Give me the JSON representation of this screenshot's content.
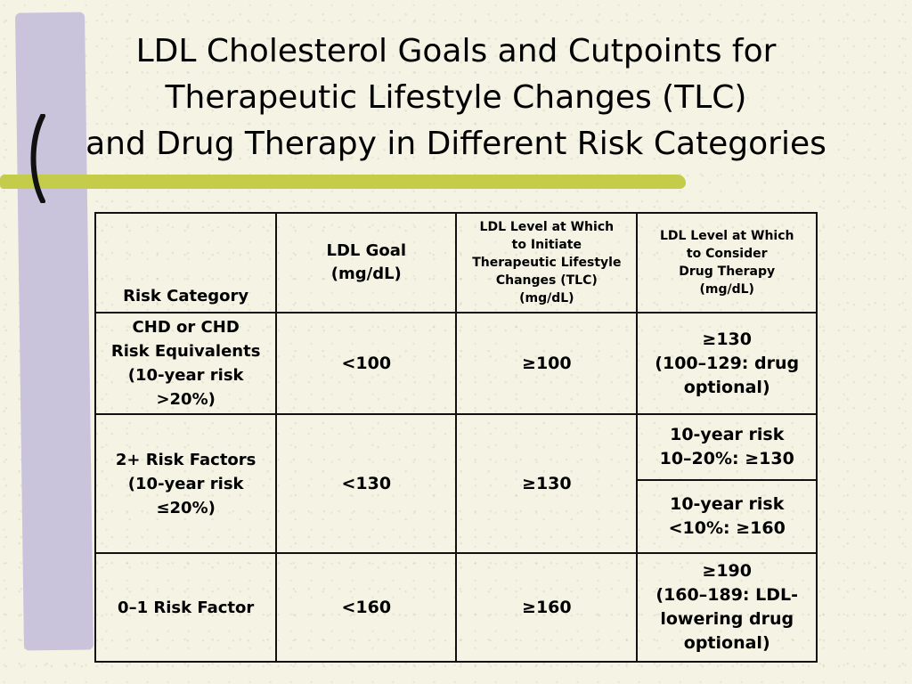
{
  "title": {
    "line1": "LDL Cholesterol Goals and Cutpoints for",
    "line2": "Therapeutic Lifestyle Changes (TLC)",
    "line3": "and Drug Therapy in Different Risk Categories"
  },
  "table": {
    "headers": {
      "risk_category": "Risk Category",
      "ldl_goal_line1": "LDL Goal",
      "ldl_goal_line2": "(mg/dL)",
      "tlc_line1": "LDL Level at Which",
      "tlc_line2": "to Initiate",
      "tlc_line3": "Therapeutic Lifestyle",
      "tlc_line4": "Changes (TLC)",
      "tlc_line5": "(mg/dL)",
      "drug_line1": "LDL Level at Which",
      "drug_line2": "to Consider",
      "drug_line3": "Drug Therapy",
      "drug_line4": "(mg/dL)"
    },
    "rows": [
      {
        "category_lines": [
          "CHD or CHD",
          "Risk Equivalents",
          "(10-year risk",
          ">20%)"
        ],
        "goal": "<100",
        "tlc": "≥100",
        "drug_lines": [
          "≥130",
          "(100–129: drug",
          "optional)"
        ]
      },
      {
        "category_lines": [
          "2+ Risk Factors",
          "(10-year risk",
          "≤20%)"
        ],
        "goal": "<130",
        "tlc": "≥130",
        "drug_a_lines": [
          "10-year risk",
          "10–20%: ≥130"
        ],
        "drug_b_lines": [
          "10-year risk",
          "<10%: ≥160"
        ]
      },
      {
        "category_lines": [
          "0–1 Risk Factor"
        ],
        "goal": "<160",
        "tlc": "≥160",
        "drug_lines": [
          "≥190",
          "(160–189: LDL-",
          "lowering drug",
          "optional)"
        ]
      }
    ]
  }
}
